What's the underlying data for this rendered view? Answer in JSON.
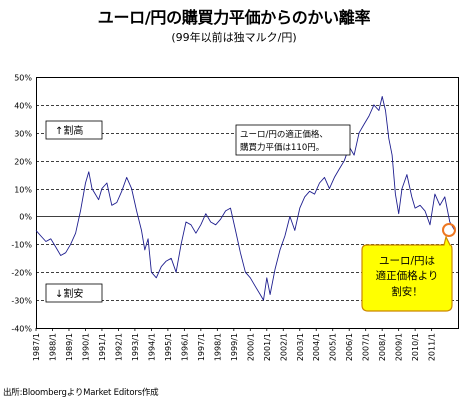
{
  "title": "ユーロ/円の購買力平価からのかい離率",
  "subtitle": "(99年以前は独マルク/円)",
  "source": "出所:BloombergよりMarket Editors作成",
  "colors": {
    "line": "#1f1f8f",
    "grid": "#000000",
    "callout_fill": "#ffff00",
    "callout_stroke": "#cc8800",
    "marker": "#ee7722"
  },
  "chart_data": {
    "type": "line",
    "title": "ユーロ/円の購買力平価からのかい離率",
    "subtitle": "(99年以前は独マルク/円)",
    "ylim": [
      -40,
      50
    ],
    "yticks": [
      -40,
      -30,
      -20,
      -10,
      0,
      10,
      20,
      30,
      40,
      50
    ],
    "ytick_labels": [
      "-40%",
      "-30%",
      "-20%",
      "-10%",
      "0%",
      "10%",
      "20%",
      "30%",
      "40%",
      "50%"
    ],
    "xlim": [
      1987.0,
      2012.6
    ],
    "xtick_labels": [
      "1987/1",
      "1988/1",
      "1989/1",
      "1990/1",
      "1991/1",
      "1992/1",
      "1993/1",
      "1994/1",
      "1995/1",
      "1996/1",
      "1997/1",
      "1998/1",
      "1999/1",
      "2000/1",
      "2001/1",
      "2002/1",
      "2003/1",
      "2004/1",
      "2005/1",
      "2006/1",
      "2007/1",
      "2008/1",
      "2009/1",
      "2010/1",
      "2011/1"
    ],
    "grid": true,
    "series": [
      {
        "x": [
          1987.0,
          1987.3,
          1987.6,
          1987.9,
          1988.2,
          1988.5,
          1988.8,
          1989.1,
          1989.4,
          1989.7,
          1990.0,
          1990.2,
          1990.4,
          1990.6,
          1990.8,
          1991.0,
          1991.3,
          1991.6,
          1991.9,
          1992.2,
          1992.5,
          1992.8,
          1993.1,
          1993.4,
          1993.6,
          1993.8,
          1994.0,
          1994.3,
          1994.6,
          1994.9,
          1995.2,
          1995.5,
          1995.8,
          1996.1,
          1996.4,
          1996.7,
          1997.0,
          1997.3,
          1997.6,
          1997.9,
          1998.2,
          1998.5,
          1998.8,
          1999.1,
          1999.4,
          1999.7,
          2000.0,
          2000.3,
          2000.6,
          2000.8,
          2001.0,
          2001.2,
          2001.5,
          2001.8,
          2002.1,
          2002.4,
          2002.7,
          2003.0,
          2003.3,
          2003.6,
          2003.9,
          2004.2,
          2004.5,
          2004.8,
          2005.1,
          2005.4,
          2005.7,
          2006.0,
          2006.3,
          2006.6,
          2006.9,
          2007.2,
          2007.5,
          2007.8,
          2008.0,
          2008.2,
          2008.4,
          2008.6,
          2008.8,
          2009.0,
          2009.2,
          2009.5,
          2009.8,
          2010.0,
          2010.3,
          2010.6,
          2010.9,
          2011.2,
          2011.5,
          2011.8,
          2012.1,
          2012.4
        ],
        "y": [
          -5,
          -7,
          -9,
          -8,
          -11,
          -14,
          -13,
          -10,
          -6,
          2,
          12,
          16,
          10,
          8,
          6,
          10,
          12,
          4,
          5,
          9,
          14,
          10,
          2,
          -5,
          -12,
          -8,
          -20,
          -22,
          -18,
          -16,
          -15,
          -20,
          -10,
          -2,
          -3,
          -6,
          -3,
          1,
          -2,
          -3,
          -1,
          2,
          3,
          -5,
          -13,
          -20,
          -22,
          -25,
          -28,
          -30,
          -22,
          -28,
          -19,
          -12,
          -7,
          0,
          -5,
          3,
          7,
          9,
          8,
          12,
          14,
          10,
          14,
          17,
          20,
          25,
          22,
          30,
          33,
          36,
          40,
          38,
          43,
          38,
          28,
          22,
          8,
          1,
          10,
          15,
          7,
          3,
          4,
          2,
          -3,
          8,
          4,
          7,
          -2,
          -5
        ]
      }
    ],
    "annotations": {
      "label_high": "↑割高",
      "label_low": "↓割安",
      "note_line1": "ユーロ/円の適正価格、",
      "note_line2": "購買力平価は110円。",
      "callout_line1": "ユーロ/円は",
      "callout_line2": "適正価格より",
      "callout_line3": "割安！"
    }
  }
}
